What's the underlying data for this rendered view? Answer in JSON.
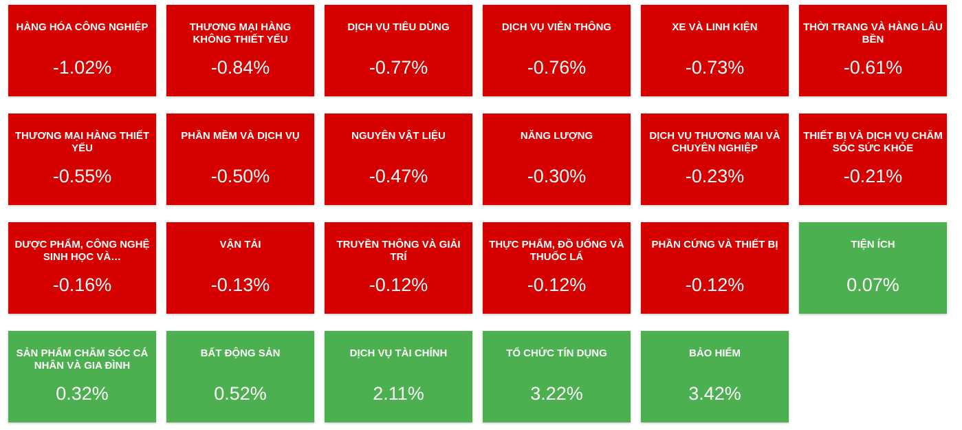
{
  "tiles": [
    {
      "label": "HÀNG HÓA CÔNG NGHIỆP",
      "value": "-1.02%",
      "color": "#d50000"
    },
    {
      "label": "THƯƠNG MẠI HÀNG KHÔNG THIẾT YẾU",
      "value": "-0.84%",
      "color": "#d50000"
    },
    {
      "label": "DỊCH VỤ TIÊU DÙNG",
      "value": "-0.77%",
      "color": "#d50000"
    },
    {
      "label": "DỊCH VỤ VIỄN THÔNG",
      "value": "-0.76%",
      "color": "#d50000"
    },
    {
      "label": "XE VÀ LINH KIỆN",
      "value": "-0.73%",
      "color": "#d50000"
    },
    {
      "label": "THỜI TRANG VÀ HÀNG LÂU BỀN",
      "value": "-0.61%",
      "color": "#d50000"
    },
    {
      "label": "THƯƠNG MẠI HÀNG THIẾT YẾU",
      "value": "-0.55%",
      "color": "#d50000"
    },
    {
      "label": "PHẦN MỀM VÀ DỊCH VỤ",
      "value": "-0.50%",
      "color": "#d50000"
    },
    {
      "label": "NGUYÊN VẬT LIỆU",
      "value": "-0.47%",
      "color": "#d50000"
    },
    {
      "label": "NĂNG LƯỢNG",
      "value": "-0.30%",
      "color": "#d50000"
    },
    {
      "label": "DỊCH VỤ THƯƠNG MẠI VÀ CHUYÊN NGHIỆP",
      "value": "-0.23%",
      "color": "#d50000"
    },
    {
      "label": "THIẾT BỊ VÀ DỊCH VỤ CHĂM SÓC SỨC KHỎE",
      "value": "-0.21%",
      "color": "#d50000"
    },
    {
      "label": "DƯỢC PHẨM, CÔNG NGHỆ SINH HỌC VÀ…",
      "value": "-0.16%",
      "color": "#d50000"
    },
    {
      "label": "VẬN TẢI",
      "value": "-0.13%",
      "color": "#d50000"
    },
    {
      "label": "TRUYỀN THÔNG VÀ GIẢI TRÍ",
      "value": "-0.12%",
      "color": "#d50000"
    },
    {
      "label": "THỰC PHẨM, ĐỒ UỐNG VÀ THUỐC LÁ",
      "value": "-0.12%",
      "color": "#d50000"
    },
    {
      "label": "PHẦN CỨNG VÀ THIẾT BỊ",
      "value": "-0.12%",
      "color": "#d50000"
    },
    {
      "label": "TIỆN ÍCH",
      "value": "0.07%",
      "color": "#4caf50"
    },
    {
      "label": "SẢN PHẨM CHĂM SÓC CÁ NHÂN VÀ GIA ĐÌNH",
      "value": "0.32%",
      "color": "#4caf50"
    },
    {
      "label": "BẤT ĐỘNG SẢN",
      "value": "0.52%",
      "color": "#4caf50"
    },
    {
      "label": "DỊCH VỤ TÀI CHÍNH",
      "value": "2.11%",
      "color": "#4caf50"
    },
    {
      "label": "TỔ CHỨC TÍN DỤNG",
      "value": "3.22%",
      "color": "#4caf50"
    },
    {
      "label": "BẢO HIỂM",
      "value": "3.42%",
      "color": "#4caf50"
    }
  ]
}
